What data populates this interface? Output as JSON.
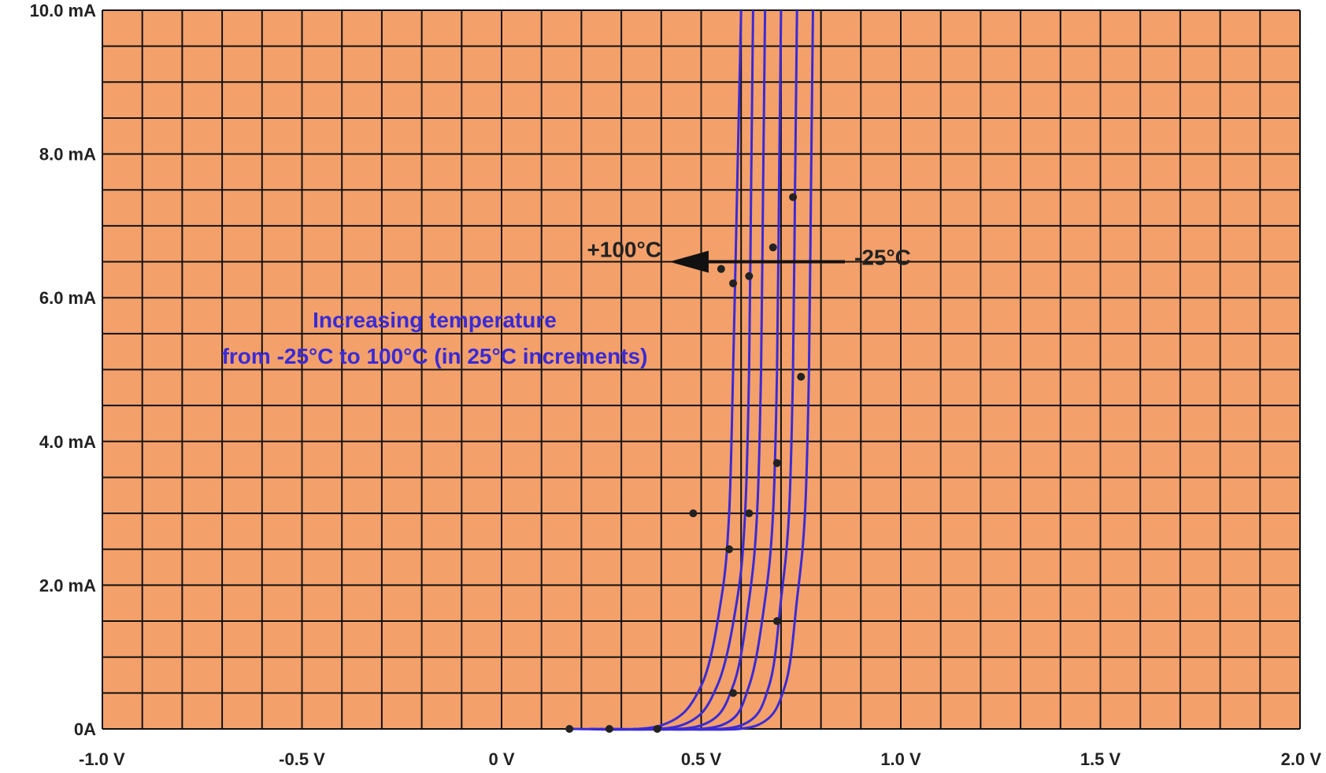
{
  "chart_data": {
    "type": "line",
    "title": "",
    "xlabel": "",
    "ylabel": "",
    "xlim": [
      -1.0,
      2.0
    ],
    "ylim": [
      0,
      10.0
    ],
    "x_ticks": [
      {
        "value": -1.0,
        "label": "-1.0 V"
      },
      {
        "value": -0.5,
        "label": "-0.5 V"
      },
      {
        "value": 0.0,
        "label": "0 V"
      },
      {
        "value": 0.5,
        "label": "0.5 V"
      },
      {
        "value": 1.0,
        "label": "1.0 V"
      },
      {
        "value": 1.5,
        "label": "1.5 V"
      },
      {
        "value": 2.0,
        "label": "2.0 V"
      }
    ],
    "y_ticks": [
      {
        "value": 0,
        "label": "0A"
      },
      {
        "value": 2.0,
        "label": "2.0 mA"
      },
      {
        "value": 4.0,
        "label": "4.0 mA"
      },
      {
        "value": 6.0,
        "label": "6.0 mA"
      },
      {
        "value": 8.0,
        "label": "8.0 mA"
      },
      {
        "value": 10.0,
        "label": "10.0 mA"
      }
    ],
    "grid": true,
    "background_color": "#f4a06a",
    "grid_color": "#111111",
    "curve_color": "#3a2bd6",
    "series": [
      {
        "turn_on_v": 0.17,
        "knee_v": 0.6,
        "points": [
          [
            0.17,
            0
          ],
          [
            0.4,
            0.05
          ],
          [
            0.5,
            0.6
          ],
          [
            0.55,
            1.8
          ],
          [
            0.57,
            3.0
          ],
          [
            0.58,
            5.0
          ],
          [
            0.59,
            7.5
          ],
          [
            0.6,
            10.0
          ]
        ]
      },
      {
        "turn_on_v": 0.22,
        "knee_v": 0.63,
        "points": [
          [
            0.22,
            0
          ],
          [
            0.45,
            0.05
          ],
          [
            0.54,
            0.6
          ],
          [
            0.59,
            1.8
          ],
          [
            0.61,
            3.0
          ],
          [
            0.62,
            5.0
          ],
          [
            0.625,
            7.5
          ],
          [
            0.63,
            10.0
          ]
        ]
      },
      {
        "turn_on_v": 0.27,
        "knee_v": 0.66,
        "points": [
          [
            0.27,
            0
          ],
          [
            0.5,
            0.05
          ],
          [
            0.58,
            0.6
          ],
          [
            0.62,
            1.8
          ],
          [
            0.64,
            3.0
          ],
          [
            0.65,
            5.0
          ],
          [
            0.655,
            7.5
          ],
          [
            0.66,
            10.0
          ]
        ]
      },
      {
        "turn_on_v": 0.33,
        "knee_v": 0.7,
        "points": [
          [
            0.33,
            0
          ],
          [
            0.55,
            0.05
          ],
          [
            0.62,
            0.6
          ],
          [
            0.66,
            1.8
          ],
          [
            0.68,
            3.0
          ],
          [
            0.69,
            5.0
          ],
          [
            0.695,
            7.5
          ],
          [
            0.7,
            10.0
          ]
        ]
      },
      {
        "turn_on_v": 0.39,
        "knee_v": 0.74,
        "points": [
          [
            0.39,
            0
          ],
          [
            0.6,
            0.05
          ],
          [
            0.67,
            0.6
          ],
          [
            0.7,
            1.8
          ],
          [
            0.72,
            3.0
          ],
          [
            0.73,
            5.0
          ],
          [
            0.735,
            7.5
          ],
          [
            0.74,
            10.0
          ]
        ]
      },
      {
        "turn_on_v": 0.45,
        "knee_v": 0.78,
        "points": [
          [
            0.45,
            0
          ],
          [
            0.64,
            0.05
          ],
          [
            0.71,
            0.6
          ],
          [
            0.74,
            1.8
          ],
          [
            0.76,
            3.0
          ],
          [
            0.77,
            5.0
          ],
          [
            0.775,
            7.5
          ],
          [
            0.78,
            10.0
          ]
        ]
      }
    ],
    "markers": [
      {
        "x": 0.17,
        "y": 0
      },
      {
        "x": 0.27,
        "y": 0
      },
      {
        "x": 0.39,
        "y": 0
      },
      {
        "x": 0.48,
        "y": 3.0
      },
      {
        "x": 0.57,
        "y": 2.5
      },
      {
        "x": 0.62,
        "y": 3.0
      },
      {
        "x": 0.69,
        "y": 3.7
      },
      {
        "x": 0.69,
        "y": 1.5
      },
      {
        "x": 0.55,
        "y": 6.4
      },
      {
        "x": 0.58,
        "y": 6.2
      },
      {
        "x": 0.62,
        "y": 6.3
      },
      {
        "x": 0.68,
        "y": 6.7
      },
      {
        "x": 0.73,
        "y": 7.4
      },
      {
        "x": 0.75,
        "y": 4.9
      },
      {
        "x": 0.58,
        "y": 0.5
      }
    ],
    "annotations": {
      "hot_label": "+100°C",
      "cold_label": "-25°C",
      "arrow_from_v": 0.86,
      "arrow_to_v": 0.42,
      "arrow_at_mA": 6.5,
      "text_line1": "Increasing temperature",
      "text_line2": "from -25°C to 100°C (in 25°C increments)"
    }
  }
}
